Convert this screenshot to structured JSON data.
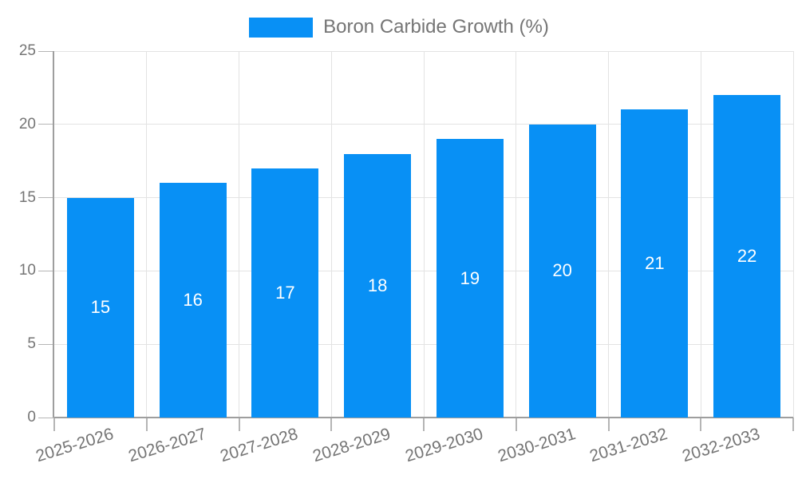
{
  "legend": {
    "label": "Boron Carbide Growth (%)"
  },
  "colors": {
    "bar": "#0890f5",
    "bar_label": "#ffffff",
    "grid_line": "#e3e3e3",
    "axis_line": "#9e9e9e",
    "tick_mark": "#b5b5b5",
    "axis_text": "#757575",
    "background": "#ffffff"
  },
  "chart_data": {
    "type": "bar",
    "title": "",
    "series_name": "Boron Carbide Growth (%)",
    "categories": [
      "2025-2026",
      "2026-2027",
      "2027-2028",
      "2028-2029",
      "2029-2030",
      "2030-2031",
      "2031-2032",
      "2032-2033"
    ],
    "values": [
      15,
      16,
      17,
      18,
      19,
      20,
      21,
      22
    ],
    "xlabel": "",
    "ylabel": "",
    "ylim": [
      0,
      25
    ],
    "yticks": [
      0,
      5,
      10,
      15,
      20,
      25
    ],
    "grid": true,
    "legend_position": "top-center",
    "value_label_position": "inside-center",
    "x_tick_rotation_deg": 17
  }
}
